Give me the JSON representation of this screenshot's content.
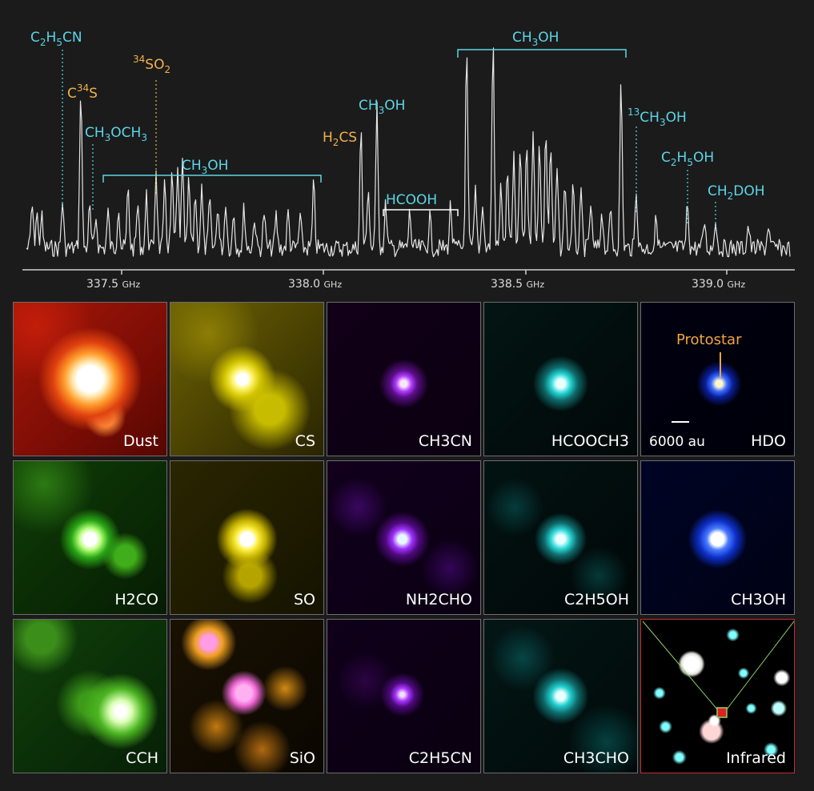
{
  "spectrum": {
    "ticks": [
      {
        "value": "337.5",
        "unit": "GHz"
      },
      {
        "value": "338.0",
        "unit": "GHz"
      },
      {
        "value": "338.5",
        "unit": "GHz"
      },
      {
        "value": "339.0",
        "unit": "GHz"
      }
    ],
    "labels": [
      {
        "id": "c2h5cn",
        "text": "C2H5CN",
        "color": "#5cd6e8"
      },
      {
        "id": "c34s",
        "text": "C34S",
        "color": "#f2b14c"
      },
      {
        "id": "34so2",
        "text": "34SO2",
        "color": "#f2b14c"
      },
      {
        "id": "ch3och3",
        "text": "CH3OCH3",
        "color": "#5cd6e8"
      },
      {
        "id": "ch3oh-1",
        "text": "CH3OH",
        "color": "#5cd6e8"
      },
      {
        "id": "h2cs",
        "text": "H2CS",
        "color": "#f2b14c"
      },
      {
        "id": "ch3oh-2",
        "text": "CH3OH",
        "color": "#5cd6e8"
      },
      {
        "id": "hcooh",
        "text": "HCOOH",
        "color": "#5cd6e8"
      },
      {
        "id": "ch3oh-3",
        "text": "CH3OH",
        "color": "#5cd6e8"
      },
      {
        "id": "13ch3oh",
        "text": "13CH3OH",
        "color": "#5cd6e8"
      },
      {
        "id": "c2h5oh",
        "text": "C2H5OH",
        "color": "#5cd6e8"
      },
      {
        "id": "ch2doh",
        "text": "CH2DOH",
        "color": "#5cd6e8"
      }
    ]
  },
  "panels": [
    {
      "id": "dust",
      "label": "Dust"
    },
    {
      "id": "cs",
      "label": "CS"
    },
    {
      "id": "ch3cn",
      "label": "CH3CN"
    },
    {
      "id": "hcooch3",
      "label": "HCOOCH3"
    },
    {
      "id": "hdo",
      "label": "HDO"
    },
    {
      "id": "h2co",
      "label": "H2CO"
    },
    {
      "id": "so",
      "label": "SO"
    },
    {
      "id": "nh2cho",
      "label": "NH2CHO"
    },
    {
      "id": "c2h5oh",
      "label": "C2H5OH"
    },
    {
      "id": "ch3oh",
      "label": "CH3OH"
    },
    {
      "id": "cch",
      "label": "CCH"
    },
    {
      "id": "sio",
      "label": "SiO"
    },
    {
      "id": "c2h5cn",
      "label": "C2H5CN"
    },
    {
      "id": "ch3cho",
      "label": "CH3CHO"
    },
    {
      "id": "infrared",
      "label": "Infrared"
    }
  ],
  "annotations": {
    "protostar": "Protostar",
    "scale": "6000 au"
  }
}
